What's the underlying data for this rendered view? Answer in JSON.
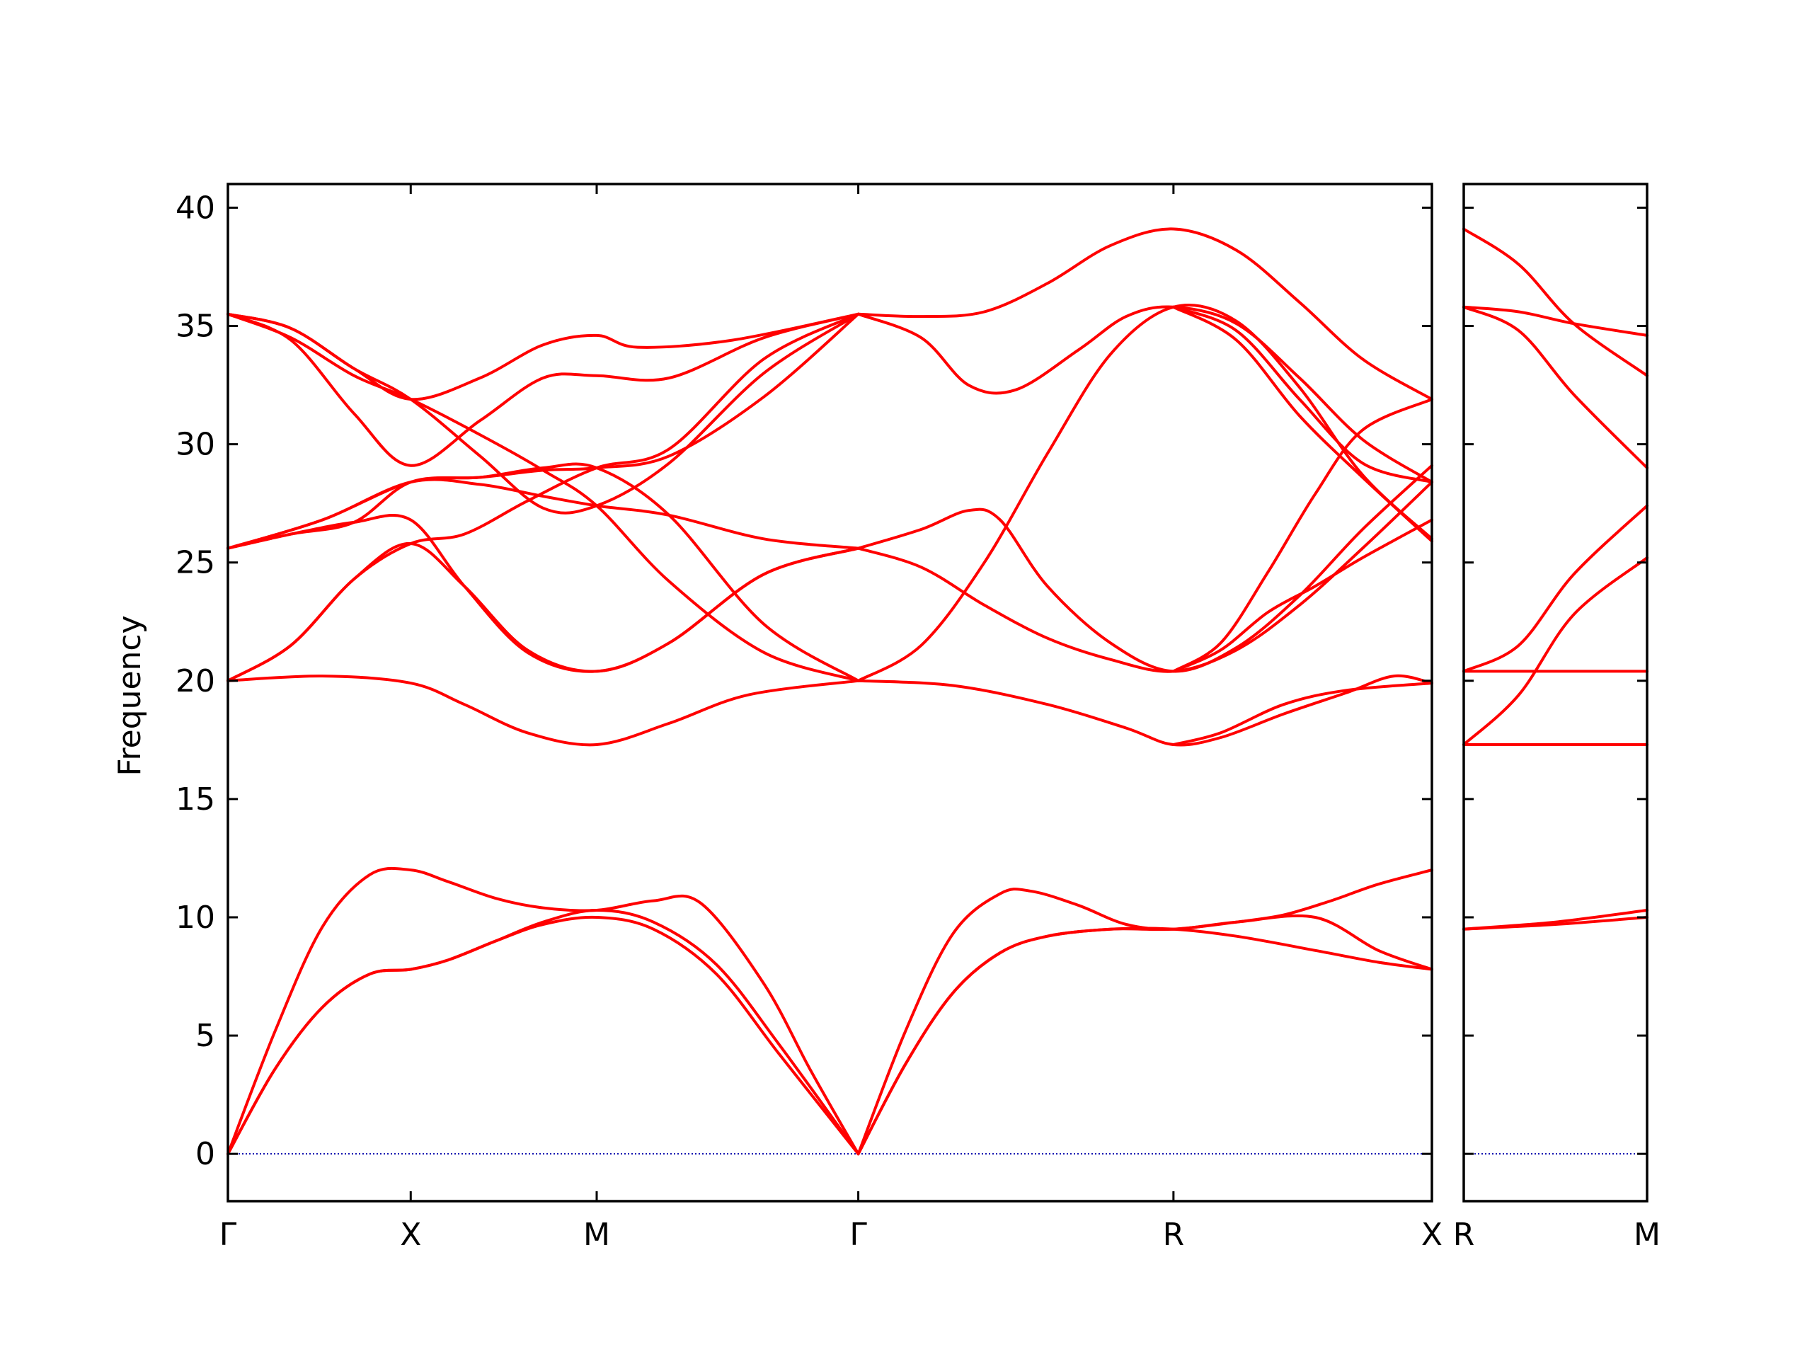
{
  "chart_data": {
    "type": "line",
    "ylabel": "Frequency",
    "xlabel": "",
    "title": "",
    "ylim": [
      -2,
      41
    ],
    "yticks": [
      0,
      5,
      10,
      15,
      20,
      25,
      30,
      35,
      40
    ],
    "grid": false,
    "legend": "none",
    "line_color": "#ff0000",
    "zero_line_color": "#0000aa",
    "panels": [
      {
        "x_range": [
          0,
          5
        ],
        "x_ticks": [
          {
            "x": 0,
            "label": "Γ"
          },
          {
            "x": 0.58,
            "label": "X"
          },
          {
            "x": 1.17,
            "label": "M"
          },
          {
            "x": 2.0,
            "label": "Γ"
          },
          {
            "x": 3.0,
            "label": "R"
          },
          {
            "x": 3.82,
            "label": "X"
          }
        ],
        "series": [
          {
            "x": [
              0,
              0.15,
              0.3,
              0.45,
              0.58,
              0.7,
              0.85,
              1.0,
              1.17,
              1.35,
              1.5,
              1.7,
              1.85,
              2.0
            ],
            "values": [
              0,
              5.2,
              9.6,
              11.8,
              12.0,
              11.5,
              10.8,
              10.4,
              10.3,
              10.7,
              10.6,
              7.2,
              3.5,
              0
            ]
          },
          {
            "x": [
              0,
              0.15,
              0.3,
              0.45,
              0.58,
              0.7,
              0.85,
              1.0,
              1.17,
              1.35,
              1.55,
              1.75,
              2.0
            ],
            "values": [
              0,
              3.6,
              6.2,
              7.6,
              7.8,
              8.2,
              9.0,
              9.8,
              10.3,
              9.8,
              8.0,
              4.6,
              0
            ]
          },
          {
            "x": [
              0,
              0.15,
              0.3,
              0.45,
              0.58,
              0.7,
              0.85,
              1.0,
              1.17,
              1.35,
              1.55,
              1.75,
              2.0
            ],
            "values": [
              0,
              3.6,
              6.2,
              7.6,
              7.8,
              8.2,
              9.0,
              9.7,
              10.0,
              9.5,
              7.6,
              4.2,
              0
            ]
          },
          {
            "x": [
              2.0,
              2.15,
              2.3,
              2.45,
              2.55,
              2.7,
              2.85,
              3.0,
              3.2,
              3.45,
              3.65,
              3.82
            ],
            "values": [
              0,
              5.2,
              9.3,
              11.0,
              11.1,
              10.5,
              9.7,
              9.5,
              9.8,
              10.0,
              8.6,
              7.8
            ]
          },
          {
            "x": [
              2.0,
              2.15,
              2.3,
              2.45,
              2.6,
              2.8,
              3.0,
              3.2,
              3.45,
              3.65,
              3.82
            ],
            "values": [
              0,
              3.8,
              6.8,
              8.5,
              9.2,
              9.5,
              9.5,
              9.2,
              8.6,
              8.1,
              7.8
            ]
          },
          {
            "x": [
              2.0,
              2.15,
              2.3,
              2.45,
              2.6,
              2.8,
              3.0,
              3.2,
              3.35,
              3.5,
              3.65,
              3.82
            ],
            "values": [
              0,
              3.8,
              6.8,
              8.5,
              9.2,
              9.5,
              9.5,
              9.8,
              10.1,
              10.7,
              11.4,
              12.0
            ]
          },
          {
            "x": [
              0,
              0.3,
              0.58,
              0.75,
              0.95,
              1.17,
              1.4,
              1.65,
              2.0
            ],
            "values": [
              20.0,
              20.2,
              19.9,
              19.0,
              17.8,
              17.3,
              18.2,
              19.4,
              20.0
            ]
          },
          {
            "x": [
              2.0,
              2.3,
              2.6,
              2.85,
              3.0,
              3.15,
              3.35,
              3.55,
              3.7,
              3.82
            ],
            "values": [
              20.0,
              19.8,
              19.0,
              18.0,
              17.3,
              17.6,
              18.6,
              19.5,
              20.2,
              19.9
            ]
          },
          {
            "x": [
              3.0,
              3.15,
              3.35,
              3.55,
              3.82
            ],
            "values": [
              17.3,
              17.8,
              19.0,
              19.6,
              19.9
            ]
          },
          {
            "x": [
              0,
              0.2,
              0.4,
              0.58,
              0.75,
              0.95,
              1.17,
              1.4,
              1.7,
              2.0
            ],
            "values": [
              20.0,
              21.5,
              24.3,
              25.8,
              26.2,
              27.6,
              29.0,
              29.8,
              33.6,
              35.5
            ]
          },
          {
            "x": [
              0,
              0.2,
              0.4,
              0.58,
              0.75,
              0.95,
              1.17,
              1.4,
              1.7,
              2.0
            ],
            "values": [
              25.6,
              26.2,
              26.7,
              26.8,
              24.0,
              21.2,
              20.4,
              21.6,
              24.5,
              25.6
            ]
          },
          {
            "x": [
              0,
              0.2,
              0.4,
              0.58,
              0.75,
              0.95,
              1.17,
              1.4,
              1.7,
              2.0
            ],
            "values": [
              20.0,
              21.5,
              24.3,
              25.8,
              24.0,
              21.3,
              20.4,
              21.6,
              24.5,
              25.6
            ]
          },
          {
            "x": [
              0,
              0.3,
              0.58,
              0.8,
              1.0,
              1.17,
              1.4,
              1.7,
              2.0
            ],
            "values": [
              25.6,
              26.8,
              28.4,
              28.3,
              27.8,
              27.4,
              27.0,
              26.0,
              25.6
            ]
          },
          {
            "x": [
              0,
              0.3,
              0.58,
              0.8,
              1.0,
              1.17,
              1.4,
              1.7,
              2.0
            ],
            "values": [
              25.6,
              26.8,
              28.4,
              28.6,
              28.9,
              29.0,
              29.5,
              32.0,
              35.5
            ]
          },
          {
            "x": [
              0,
              0.2,
              0.4,
              0.58,
              0.8,
              1.0,
              1.17,
              1.4,
              1.7,
              2.0
            ],
            "values": [
              35.5,
              34.5,
              32.9,
              31.9,
              30.4,
              28.9,
              27.4,
              24.2,
              21.2,
              20.0
            ]
          },
          {
            "x": [
              0,
              0.2,
              0.4,
              0.58,
              0.8,
              1.0,
              1.17,
              1.4,
              1.7,
              2.0
            ],
            "values": [
              35.5,
              34.4,
              31.3,
              29.1,
              31.0,
              32.8,
              32.9,
              32.8,
              34.5,
              35.5
            ]
          },
          {
            "x": [
              0,
              0.2,
              0.4,
              0.58,
              0.8,
              1.0,
              1.17,
              1.3,
              1.6,
              2.0
            ],
            "values": [
              35.5,
              34.9,
              33.2,
              31.9,
              32.8,
              34.2,
              34.6,
              34.1,
              34.4,
              35.5
            ]
          },
          {
            "x": [
              0,
              0.2,
              0.4,
              0.58,
              0.8,
              1.0,
              1.17,
              1.4,
              1.7,
              2.0
            ],
            "values": [
              35.5,
              34.9,
              33.2,
              31.9,
              29.5,
              27.3,
              27.4,
              29.2,
              33.0,
              35.5
            ]
          },
          {
            "x": [
              0,
              0.2,
              0.4,
              0.58,
              0.8,
              1.0,
              1.17,
              1.4,
              1.7,
              2.0
            ],
            "values": [
              25.6,
              26.2,
              26.7,
              28.4,
              28.6,
              29.0,
              29.0,
              27.0,
              22.4,
              20.0
            ]
          },
          {
            "x": [
              2.0,
              2.2,
              2.4,
              2.6,
              2.8,
              3.0,
              3.2,
              3.4,
              3.6,
              3.82
            ],
            "values": [
              35.5,
              35.4,
              35.6,
              36.8,
              38.4,
              39.1,
              38.2,
              36.0,
              33.6,
              31.9
            ]
          },
          {
            "x": [
              2.0,
              2.2,
              2.35,
              2.5,
              2.7,
              2.85,
              3.0,
              3.2,
              3.4,
              3.6,
              3.82
            ],
            "values": [
              35.5,
              34.5,
              32.5,
              32.3,
              34.0,
              35.4,
              35.8,
              35.1,
              32.8,
              30.2,
              28.4
            ]
          },
          {
            "x": [
              2.0,
              2.2,
              2.4,
              2.6,
              2.8,
              3.0,
              3.2,
              3.4,
              3.6,
              3.82
            ],
            "values": [
              20.0,
              21.5,
              25.0,
              29.6,
              33.8,
              35.8,
              35.2,
              32.4,
              28.7,
              26.0
            ]
          },
          {
            "x": [
              2.0,
              2.2,
              2.35,
              2.45,
              2.6,
              2.8,
              3.0,
              3.2,
              3.4,
              3.6,
              3.82
            ],
            "values": [
              25.6,
              26.4,
              27.2,
              26.8,
              24.0,
              21.6,
              20.4,
              21.4,
              23.6,
              26.4,
              29.1
            ]
          },
          {
            "x": [
              2.0,
              2.2,
              2.4,
              2.6,
              2.8,
              3.0,
              3.2,
              3.4,
              3.6,
              3.82
            ],
            "values": [
              25.6,
              24.8,
              23.2,
              21.8,
              20.9,
              20.4,
              21.3,
              23.2,
              25.6,
              28.4
            ]
          },
          {
            "x": [
              3.0,
              3.15,
              3.3,
              3.45,
              3.6,
              3.82
            ],
            "values": [
              20.4,
              21.6,
              24.6,
              27.9,
              30.6,
              31.9
            ]
          },
          {
            "x": [
              3.0,
              3.15,
              3.3,
              3.45,
              3.6,
              3.82
            ],
            "values": [
              20.4,
              21.3,
              22.9,
              24.0,
              25.2,
              26.8
            ]
          },
          {
            "x": [
              3.0,
              3.2,
              3.4,
              3.6,
              3.82
            ],
            "values": [
              35.8,
              34.8,
              31.9,
              29.2,
              28.4
            ]
          },
          {
            "x": [
              3.0,
              3.2,
              3.4,
              3.6,
              3.82
            ],
            "values": [
              35.8,
              34.4,
              31.2,
              28.6,
              25.9
            ]
          }
        ]
      },
      {
        "x_range": [
          0,
          1
        ],
        "x_ticks": [
          {
            "x": 0,
            "label": "R"
          },
          {
            "x": 1,
            "label": "M"
          }
        ],
        "series": [
          {
            "x": [
              0,
              0.3,
              0.6,
              1.0
            ],
            "values": [
              39.1,
              37.6,
              35.1,
              32.9
            ]
          },
          {
            "x": [
              0,
              0.3,
              0.6,
              1.0
            ],
            "values": [
              35.8,
              35.6,
              35.1,
              34.6
            ]
          },
          {
            "x": [
              0,
              0.3,
              0.6,
              1.0
            ],
            "values": [
              35.8,
              34.8,
              32.1,
              29.0
            ]
          },
          {
            "x": [
              0,
              0.3,
              0.6,
              1.0
            ],
            "values": [
              20.4,
              21.5,
              24.5,
              27.4
            ]
          },
          {
            "x": [
              0,
              0.3,
              0.6,
              1.0
            ],
            "values": [
              17.3,
              19.4,
              22.8,
              25.2
            ]
          },
          {
            "x": [
              0,
              0.5,
              1.0
            ],
            "values": [
              20.4,
              20.4,
              20.4
            ]
          },
          {
            "x": [
              0,
              0.5,
              1.0
            ],
            "values": [
              17.3,
              17.3,
              17.3
            ]
          },
          {
            "x": [
              0,
              0.5,
              1.0
            ],
            "values": [
              9.5,
              9.8,
              10.3
            ]
          },
          {
            "x": [
              0,
              0.5,
              1.0
            ],
            "values": [
              9.5,
              9.7,
              10.0
            ]
          }
        ]
      }
    ]
  }
}
